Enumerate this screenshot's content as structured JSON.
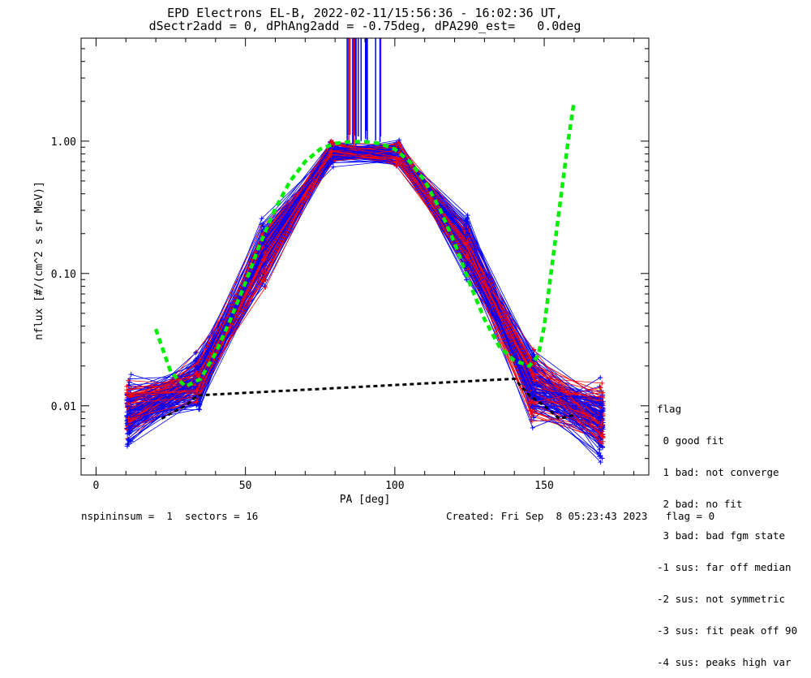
{
  "title": "EPD Electrons EL-B, 2022-02-11/15:56:36 - 16:02:36 UT,",
  "subtitle": "dSectr2add = 0, dPhAng2add = -0.75deg, dPA290_est=   0.0deg",
  "footer": {
    "left": "nspininsum =  1  sectors = 16",
    "right": "Created: Fri Sep  8 05:23:43 2023   flag = 0"
  },
  "legend": {
    "title": "flag",
    "items": [
      " 0 good fit",
      " 1 bad: not converge",
      " 2 bad: no fit",
      " 3 bad: bad fgm state",
      "-1 sus: far off median",
      "-2 sus: not symmetric",
      "-3 sus: fit peak off 90",
      "-4 sus: peaks high var"
    ]
  },
  "colors": {
    "blue": "#0000ff",
    "red": "#ff0000",
    "green": "#00ee00",
    "black": "#000000"
  },
  "chart_data": {
    "type": "line",
    "xlabel": "PA [deg]",
    "ylabel": "nflux [#/(cm^2 s sr MeV)]",
    "xlim": [
      -5,
      185
    ],
    "ylim": [
      0.003,
      6.0
    ],
    "yscale": "log",
    "xticks": [
      0,
      50,
      100,
      150
    ],
    "xtick_labels": [
      "0",
      "50",
      "100",
      "150"
    ],
    "yticks": [
      0.01,
      0.1,
      1.0
    ],
    "ytick_labels": [
      "0.01",
      "0.10",
      "1.00"
    ],
    "sector_pa": [
      11,
      34,
      56,
      79,
      101,
      124,
      146,
      169
    ],
    "median_profile": [
      0.009,
      0.015,
      0.14,
      0.82,
      0.8,
      0.16,
      0.014,
      0.008
    ],
    "fit_curve": {
      "color": "green",
      "style": "dashed",
      "x": [
        20,
        25,
        30,
        35,
        40,
        45,
        50,
        55,
        60,
        65,
        70,
        75,
        80,
        85,
        90,
        95,
        100,
        105,
        110,
        115,
        120,
        125,
        130,
        135,
        140,
        145,
        148,
        150,
        152,
        154,
        156,
        158,
        160
      ],
      "y": [
        0.038,
        0.018,
        0.014,
        0.016,
        0.025,
        0.045,
        0.085,
        0.17,
        0.31,
        0.5,
        0.7,
        0.87,
        0.96,
        0.99,
        0.99,
        0.96,
        0.87,
        0.7,
        0.5,
        0.31,
        0.17,
        0.085,
        0.045,
        0.028,
        0.022,
        0.02,
        0.024,
        0.04,
        0.09,
        0.2,
        0.45,
        1.0,
        2.0
      ]
    },
    "median_curve": {
      "color": "black",
      "style": "dashed",
      "x": [
        22,
        26,
        30,
        34,
        140,
        145,
        150,
        155,
        160
      ],
      "y": [
        0.008,
        0.009,
        0.01,
        0.012,
        0.016,
        0.012,
        0.01,
        0.008,
        0.0085
      ]
    }
  }
}
